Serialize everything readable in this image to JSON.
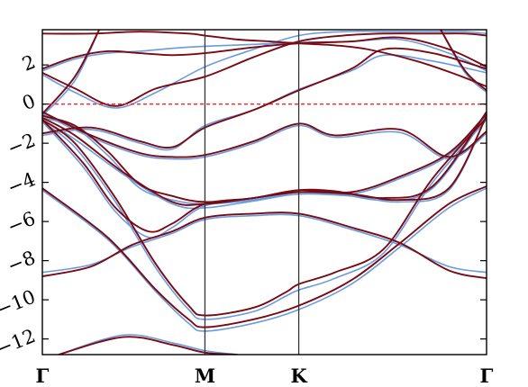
{
  "chart_data": {
    "type": "line",
    "title": "",
    "xlabel": "",
    "ylabel": "",
    "xlim": [
      0,
      2.732
    ],
    "ylim": [
      -12.8,
      3.8
    ],
    "y_ticks": [
      -12,
      -10,
      -8,
      -6,
      -4,
      -2,
      0,
      2
    ],
    "y_tick_labels": [
      "−12",
      "−10",
      "−8",
      "−6",
      "−4",
      "−2",
      "0",
      "2"
    ],
    "k_points": [
      {
        "label": "Γ",
        "x": 0
      },
      {
        "label": "M",
        "x": 1.0
      },
      {
        "label": "K",
        "x": 1.577
      },
      {
        "label": "Γ",
        "x": 2.732
      }
    ],
    "fermi_level": 0,
    "grid": false,
    "colors": {
      "series_a": "#6a9be0",
      "series_b": "#7a0a12",
      "fermi": "#ff2020",
      "kline": "#333333"
    },
    "series": [
      {
        "color_key": "series_a",
        "bands": [
          {
            "x": [
              0,
              0.2,
              0.5,
              0.8,
              1.0,
              1.3,
              1.577,
              1.9,
              2.2,
              2.5,
              2.732
            ],
            "y": [
              -0.8,
              -1.8,
              -3.6,
              -5.1,
              -5.3,
              -4.95,
              -4.6,
              -4.7,
              -5.0,
              -4.4,
              -0.6
            ]
          },
          {
            "x": [
              0,
              0.2,
              0.4,
              0.6,
              0.8,
              1.0,
              1.3,
              1.577,
              1.9,
              2.2,
              2.5,
              2.732
            ],
            "y": [
              -0.7,
              -1.2,
              -2.6,
              -4.3,
              -4.9,
              -5.1,
              -4.9,
              -4.5,
              -4.6,
              -3.8,
              -2.6,
              -0.6
            ]
          },
          {
            "x": [
              0,
              0.25,
              0.45,
              0.65,
              0.8,
              1.0,
              1.3,
              1.577,
              1.8,
              2.1,
              2.4,
              2.732
            ],
            "y": [
              -0.9,
              -3.2,
              -5.5,
              -6.8,
              -6.3,
              -5.2,
              -4.9,
              -4.5,
              -4.55,
              -4.9,
              -4.3,
              -0.5
            ]
          },
          {
            "x": [
              0,
              0.3,
              0.6,
              0.8,
              1.0,
              1.3,
              1.577,
              1.9,
              2.1,
              2.4,
              2.732
            ],
            "y": [
              -1.6,
              -1.3,
              -2.0,
              -2.3,
              -1.1,
              -0.3,
              0.75,
              1.7,
              2.5,
              2.2,
              1.6
            ]
          },
          {
            "x": [
              0,
              0.3,
              0.6,
              0.8,
              1.0,
              1.3,
              1.577,
              1.8,
              2.2,
              2.5,
              2.732
            ],
            "y": [
              -0.5,
              -1.7,
              -2.6,
              -2.8,
              -2.7,
              -2.0,
              -1.1,
              -1.7,
              -1.45,
              -2.8,
              -1.5
            ]
          },
          {
            "x": [
              0,
              0.3,
              0.55,
              0.8,
              1.0,
              1.3,
              1.577,
              1.9,
              2.2,
              2.5,
              2.732
            ],
            "y": [
              -8.6,
              -8.2,
              -7.3,
              -6.6,
              -5.9,
              -5.7,
              -5.7,
              -6.4,
              -7.2,
              -8.3,
              -8.6
            ]
          },
          {
            "x": [
              0,
              0.2,
              0.45,
              0.7,
              0.9,
              1.0,
              1.3,
              1.5,
              1.577,
              1.8,
              2.1,
              2.4,
              2.732
            ],
            "y": [
              -0.9,
              -2.2,
              -5.0,
              -8.4,
              -10.5,
              -11.0,
              -10.6,
              -9.8,
              -9.5,
              -8.9,
              -7.6,
              -4.0,
              -0.8
            ]
          },
          {
            "x": [
              0,
              0.4,
              0.7,
              0.9,
              1.0,
              1.3,
              1.577,
              1.9,
              2.2,
              2.5,
              2.732
            ],
            "y": [
              -4.4,
              -6.9,
              -9.6,
              -11.2,
              -11.6,
              -11.2,
              -10.5,
              -9.2,
              -7.3,
              -5.3,
              -4.3
            ]
          },
          {
            "x": [
              0,
              0.2,
              0.4,
              0.6,
              0.8,
              1.0,
              1.3,
              1.577,
              1.9,
              2.2,
              2.5,
              2.732
            ],
            "y": [
              1.7,
              2.3,
              2.6,
              2.7,
              2.85,
              2.95,
              3.05,
              3.15,
              3.2,
              3.3,
              2.6,
              1.7
            ]
          },
          {
            "x": [
              0,
              0.2,
              0.45,
              0.7,
              1.0,
              1.3,
              1.577,
              1.85,
              2.1,
              2.4,
              2.6,
              2.732
            ],
            "y": [
              1.5,
              0.6,
              -0.2,
              0.6,
              1.9,
              2.8,
              3.5,
              3.7,
              3.7,
              3.7,
              3.7,
              3.6
            ]
          },
          {
            "x": [
              0,
              0.2,
              0.35
            ],
            "y": [
              -0.6,
              1.2,
              3.8
            ]
          },
          {
            "x": [
              2.45,
              2.6,
              2.732
            ],
            "y": [
              3.8,
              1.6,
              0.6
            ]
          },
          {
            "x": [
              0.1,
              0.5,
              0.8,
              1.0,
              1.2
            ],
            "y": [
              -12.8,
              -11.8,
              -12.2,
              -12.6,
              -12.8
            ]
          }
        ]
      },
      {
        "color_key": "series_b",
        "bands": [
          {
            "x": [
              0,
              0.2,
              0.5,
              0.8,
              1.0,
              1.3,
              1.577,
              1.9,
              2.2,
              2.5,
              2.732
            ],
            "y": [
              -0.7,
              -1.6,
              -3.5,
              -5.0,
              -5.1,
              -4.8,
              -4.5,
              -4.6,
              -4.9,
              -4.3,
              -0.6
            ]
          },
          {
            "x": [
              0,
              0.2,
              0.4,
              0.6,
              0.8,
              1.0,
              1.3,
              1.577,
              1.9,
              2.2,
              2.5,
              2.732
            ],
            "y": [
              -0.6,
              -1.1,
              -2.4,
              -4.1,
              -4.7,
              -5.0,
              -4.8,
              -4.4,
              -4.5,
              -3.7,
              -2.5,
              -0.5
            ]
          },
          {
            "x": [
              0,
              0.25,
              0.45,
              0.65,
              0.8,
              1.0,
              1.3,
              1.577,
              1.8,
              2.1,
              2.4,
              2.732
            ],
            "y": [
              -0.8,
              -3.0,
              -5.3,
              -6.5,
              -6.1,
              -5.1,
              -4.8,
              -4.4,
              -4.45,
              -4.8,
              -4.2,
              -0.4
            ]
          },
          {
            "x": [
              0,
              0.3,
              0.6,
              0.8,
              1.0,
              1.3,
              1.577,
              1.9,
              2.1,
              2.4,
              2.732
            ],
            "y": [
              -1.5,
              -1.2,
              -1.9,
              -2.2,
              -1.2,
              -0.3,
              0.7,
              1.8,
              2.8,
              2.6,
              1.8
            ]
          },
          {
            "x": [
              0,
              0.3,
              0.6,
              0.8,
              1.0,
              1.3,
              1.577,
              1.8,
              2.2,
              2.5,
              2.732
            ],
            "y": [
              -0.4,
              -1.6,
              -2.5,
              -2.7,
              -2.6,
              -1.9,
              -1.0,
              -1.6,
              -1.3,
              -2.7,
              -1.4
            ]
          },
          {
            "x": [
              0,
              0.3,
              0.55,
              0.8,
              1.0,
              1.3,
              1.577,
              1.9,
              2.2,
              2.5,
              2.732
            ],
            "y": [
              -8.8,
              -8.3,
              -7.2,
              -6.5,
              -5.8,
              -5.6,
              -5.6,
              -6.3,
              -7.1,
              -8.5,
              -8.9
            ]
          },
          {
            "x": [
              0,
              0.2,
              0.45,
              0.7,
              0.9,
              1.0,
              1.3,
              1.5,
              1.577,
              1.8,
              2.1,
              2.4,
              2.732
            ],
            "y": [
              -0.8,
              -2.0,
              -4.8,
              -8.2,
              -10.3,
              -10.8,
              -10.4,
              -9.6,
              -9.2,
              -8.6,
              -7.4,
              -3.8,
              -0.7
            ]
          },
          {
            "x": [
              0,
              0.4,
              0.7,
              0.9,
              1.0,
              1.3,
              1.577,
              1.9,
              2.2,
              2.5,
              2.732
            ],
            "y": [
              -4.3,
              -6.8,
              -9.5,
              -11.0,
              -11.4,
              -11.0,
              -10.3,
              -9.0,
              -7.1,
              -5.1,
              -4.2
            ]
          },
          {
            "x": [
              0,
              0.2,
              0.4,
              0.6,
              0.8,
              1.0,
              1.3,
              1.577,
              1.9,
              2.2,
              2.5,
              2.732
            ],
            "y": [
              1.8,
              2.4,
              2.7,
              2.6,
              2.5,
              2.6,
              2.9,
              3.1,
              3.2,
              3.4,
              2.8,
              1.9
            ]
          },
          {
            "x": [
              0,
              0.2,
              0.45,
              0.7,
              1.0,
              1.3,
              1.577,
              1.85,
              2.1,
              2.4,
              2.6,
              2.732
            ],
            "y": [
              1.6,
              0.8,
              -0.1,
              0.8,
              1.4,
              2.4,
              3.2,
              3.5,
              3.6,
              3.6,
              3.6,
              3.5
            ]
          },
          {
            "x": [
              0,
              0.2,
              0.35
            ],
            "y": [
              -0.5,
              1.4,
              3.8
            ]
          },
          {
            "x": [
              2.45,
              2.6,
              2.732
            ],
            "y": [
              3.8,
              1.7,
              0.7
            ]
          },
          {
            "x": [
              0.1,
              0.5,
              0.8,
              1.0,
              1.2
            ],
            "y": [
              -12.8,
              -11.9,
              -12.3,
              -12.7,
              -12.8
            ]
          },
          {
            "x": [
              0,
              0.3,
              0.6,
              0.9,
              1.0,
              1.2,
              1.4,
              1.577,
              1.8,
              2.0,
              2.3,
              2.55,
              2.732
            ],
            "y": [
              3.6,
              3.6,
              3.7,
              3.6,
              3.5,
              3.3,
              3.2,
              3.1,
              3.0,
              2.8,
              2.2,
              1.5,
              0.9
            ]
          }
        ]
      }
    ]
  }
}
